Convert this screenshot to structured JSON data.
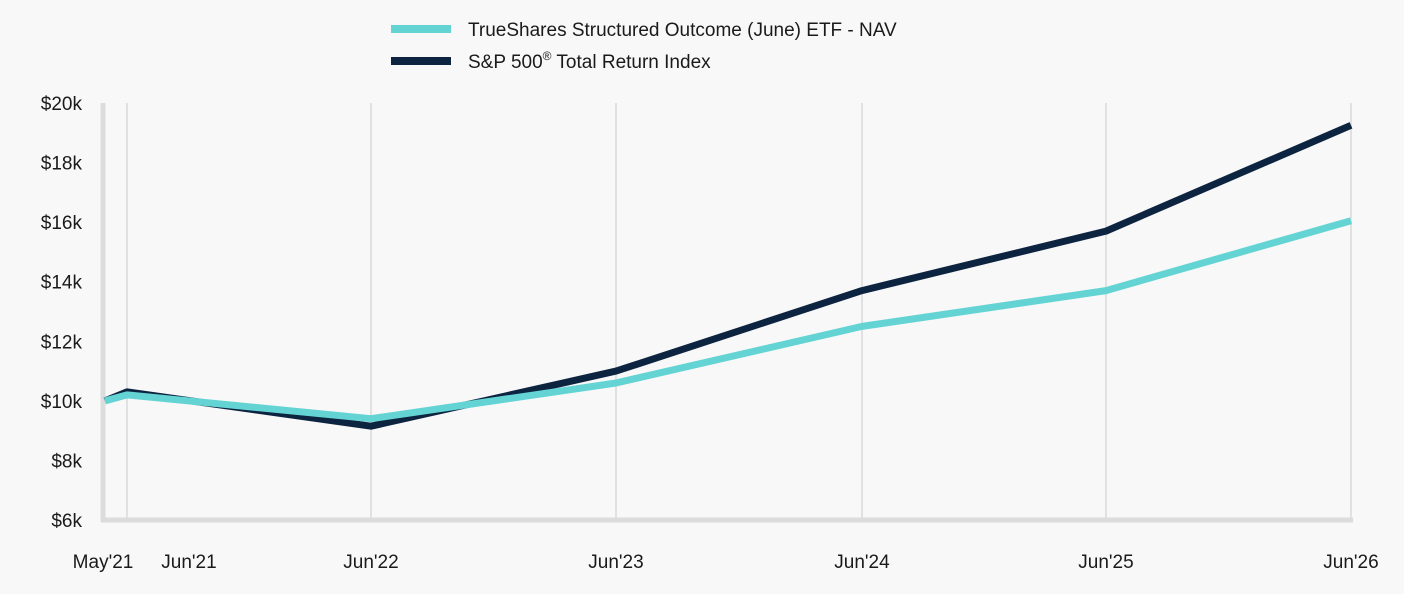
{
  "chart_data": {
    "type": "line",
    "x": [
      "May'21",
      "Jun'21",
      "Jun'22",
      "Jun'23",
      "Jun'24",
      "Jun'25",
      "Jun'26"
    ],
    "series": [
      {
        "name": "TrueShares Structured Outcome (June) ETF - NAV",
        "color": "#63d4d3",
        "values": [
          10000,
          10200,
          9400,
          10600,
          12500,
          13700,
          16050
        ]
      },
      {
        "name": "S&P 500",
        "name_superscript": "®",
        "name_suffix": " Total Return Index",
        "color": "#0d2440",
        "values": [
          10000,
          10300,
          9150,
          11000,
          13700,
          15700,
          19250
        ]
      }
    ],
    "yticks": [
      "$6k",
      "$8k",
      "$10k",
      "$12k",
      "$14k",
      "$16k",
      "$18k",
      "$20k"
    ],
    "ytick_values": [
      6000,
      8000,
      10000,
      12000,
      14000,
      16000,
      18000,
      20000
    ],
    "ylim": [
      6000,
      20000
    ],
    "grid": "vertical",
    "legend": "top-center",
    "title": "",
    "xlabel": "",
    "ylabel": ""
  }
}
